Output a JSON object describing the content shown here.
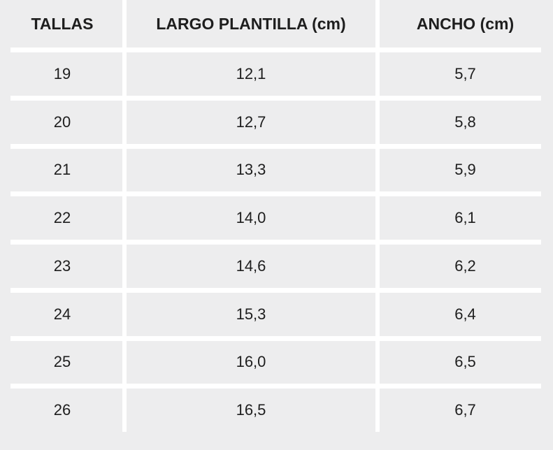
{
  "chart_data": {
    "type": "table",
    "columns": [
      "TALLAS",
      "LARGO PLANTILLA (cm)",
      "ANCHO (cm)"
    ],
    "rows": [
      [
        "19",
        "12,1",
        "5,7"
      ],
      [
        "20",
        "12,7",
        "5,8"
      ],
      [
        "21",
        "13,3",
        "5,9"
      ],
      [
        "22",
        "14,0",
        "6,1"
      ],
      [
        "23",
        "14,6",
        "6,2"
      ],
      [
        "24",
        "15,3",
        "6,4"
      ],
      [
        "25",
        "16,0",
        "6,5"
      ],
      [
        "26",
        "16,5",
        "6,7"
      ]
    ],
    "numeric": {
      "tallas": [
        19,
        20,
        21,
        22,
        23,
        24,
        25,
        26
      ],
      "largo_plantilla_cm": [
        12.1,
        12.7,
        13.3,
        14.0,
        14.6,
        15.3,
        16.0,
        16.5
      ],
      "ancho_cm": [
        5.7,
        5.8,
        5.9,
        6.1,
        6.2,
        6.4,
        6.5,
        6.7
      ]
    }
  },
  "colors": {
    "background": "#EDEDEE",
    "divider": "#FFFFFF",
    "text": "#1E1E1E"
  }
}
